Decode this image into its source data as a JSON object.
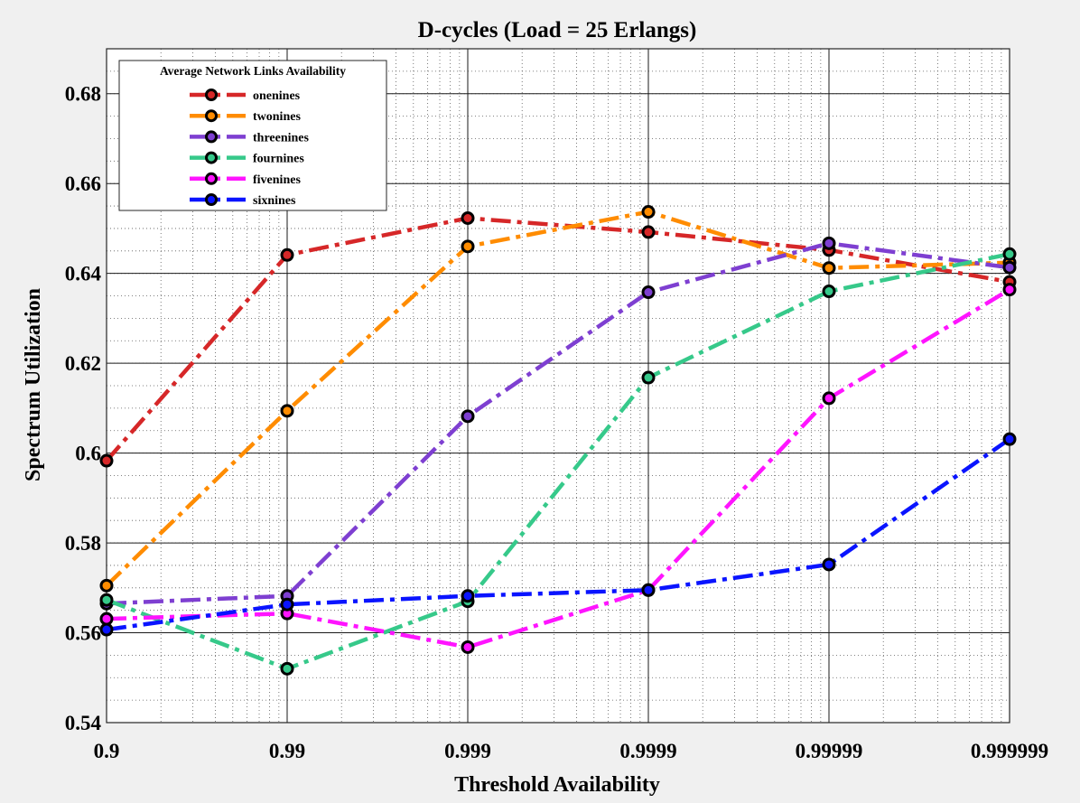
{
  "chart_data": {
    "type": "line",
    "title": "D-cycles (Load  = 25 Erlangs)",
    "xlabel": "Threshold Availability",
    "ylabel": "Spectrum Utilization",
    "x_scale": "log",
    "x_tick_labels": [
      "0.9",
      "0.99",
      "0.999",
      "0.9999",
      "0.99999",
      "0.999999"
    ],
    "categories": [
      "0.9",
      "0.99",
      "0.999",
      "0.9999",
      "0.99999",
      "0.999999"
    ],
    "ylim": [
      0.54,
      0.69
    ],
    "yticks": [
      0.54,
      0.56,
      0.58,
      0.6,
      0.62,
      0.64,
      0.66,
      0.68
    ],
    "y_tick_labels": [
      "0.54",
      "0.56",
      "0.58",
      "0.6",
      "0.62",
      "0.64",
      "0.66",
      "0.68"
    ],
    "grid": true,
    "minor_grid": true,
    "legend_title": "Average Network Links Availability",
    "legend_position": "top-left",
    "line_style": "dash-dot",
    "marker": "circle",
    "series": [
      {
        "name": "onenines",
        "color": "#d62728",
        "values": [
          0.5983,
          0.6441,
          0.6523,
          0.6492,
          0.6452,
          0.6381
        ]
      },
      {
        "name": "twonines",
        "color": "#ff8c00",
        "values": [
          0.5705,
          0.6094,
          0.646,
          0.6537,
          0.6412,
          0.6424
        ]
      },
      {
        "name": "threenines",
        "color": "#7e3fd1",
        "values": [
          0.5665,
          0.5682,
          0.6082,
          0.6358,
          0.6467,
          0.6413
        ]
      },
      {
        "name": "fournines",
        "color": "#36c98a",
        "values": [
          0.5673,
          0.552,
          0.567,
          0.6168,
          0.636,
          0.6443
        ]
      },
      {
        "name": "fivenines",
        "color": "#ff14ff",
        "values": [
          0.5631,
          0.5643,
          0.5568,
          0.5695,
          0.6122,
          0.6364
        ]
      },
      {
        "name": "sixnines",
        "color": "#0a14ff",
        "values": [
          0.5607,
          0.5663,
          0.5682,
          0.5695,
          0.5752,
          0.6031
        ]
      }
    ]
  }
}
